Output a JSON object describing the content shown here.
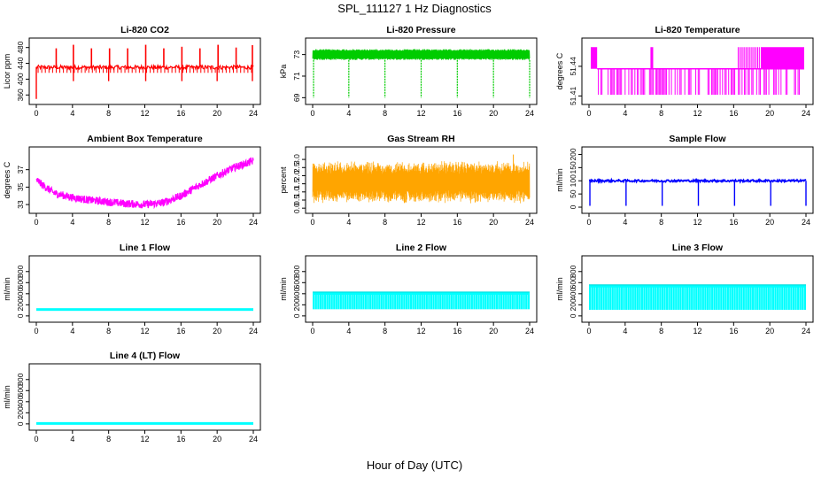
{
  "title": "SPL_111127  1 Hz Diagnostics",
  "xlabel": "Hour of Day (UTC)",
  "chart_data": [
    {
      "id": "co2",
      "type": "line",
      "title": "Li-820 CO2",
      "ylabel": "Licor ppm",
      "color": "#ff0000",
      "xlim": [
        0,
        24
      ],
      "ylim": [
        345,
        495
      ],
      "xticks": [
        0,
        4,
        8,
        12,
        16,
        20,
        24
      ],
      "yticks": [
        360,
        400,
        440,
        480
      ],
      "baseline": 430,
      "noise": 5,
      "spikes_x": [
        2.2,
        4.1,
        6.1,
        8.1,
        10.1,
        12.1,
        14.1,
        16.1,
        18.1,
        20.1,
        22.1,
        23.9
      ],
      "spikes_top": [
        478,
        487,
        478,
        478,
        478,
        487,
        478,
        482,
        478,
        487,
        480,
        486
      ],
      "dips_x": [
        4.1,
        8.0,
        12.1,
        16.1,
        20.0,
        23.9
      ],
      "dip_bottom": 395
    },
    {
      "id": "pressure",
      "type": "line",
      "title": "Li-820 Pressure",
      "ylabel": "kPa",
      "color": "#00cc00",
      "xlim": [
        0,
        24
      ],
      "ylim": [
        68.7,
        74.2
      ],
      "xticks": [
        0,
        4,
        8,
        12,
        16,
        20,
        24
      ],
      "yticks": [
        69,
        71,
        73
      ],
      "band_low": 72.5,
      "band_high": 73.5,
      "dips_x": [
        0.1,
        4.0,
        8.0,
        12.0,
        16.0,
        20.0,
        24.0
      ],
      "dip_bottom": 69
    },
    {
      "id": "licor_temp",
      "type": "line",
      "title": "Li-820 Temperature",
      "ylabel": "degrees C",
      "color": "#ff00ff",
      "xlim": [
        0,
        24
      ],
      "ylim": [
        51.405,
        51.465
      ],
      "xticks": [
        0,
        4,
        8,
        12,
        16,
        20,
        24
      ],
      "yticks": [
        51.41,
        51.44
      ],
      "levels": [
        51.4112,
        51.4375,
        51.4594
      ]
    },
    {
      "id": "box_temp",
      "type": "line",
      "title": "Ambient Box Temperature",
      "ylabel": "degrees C",
      "color": "#ff00ff",
      "xlim": [
        0,
        24
      ],
      "ylim": [
        32.4,
        39.2
      ],
      "xticks": [
        0,
        4,
        8,
        12,
        16,
        20,
        24
      ],
      "yticks": [
        33,
        35,
        37
      ],
      "x": [
        0,
        1,
        2,
        4,
        6,
        8,
        10,
        12,
        14,
        16,
        18,
        20,
        22,
        23.5,
        24
      ],
      "y": [
        35.8,
        35.0,
        34.3,
        33.8,
        33.5,
        33.3,
        33.1,
        33.0,
        33.2,
        34.0,
        35.2,
        36.3,
        37.3,
        37.8,
        38.0
      ],
      "spread": 0.45
    },
    {
      "id": "rh",
      "type": "line",
      "title": "Gas Stream RH",
      "ylabel": "percent",
      "color": "#ffa500",
      "xlim": [
        0,
        24
      ],
      "ylim": [
        -0.1,
        3.55
      ],
      "xticks": [
        0,
        4,
        8,
        12,
        16,
        20,
        24
      ],
      "yticks": [
        0.0,
        0.5,
        1.0,
        1.5,
        2.0,
        2.5,
        3.0
      ],
      "center": 1.6,
      "amplitude": 0.9,
      "peak": 3.3
    },
    {
      "id": "sample_flow",
      "type": "line",
      "title": "Sample Flow",
      "ylabel": "ml/min",
      "color": "#0000ff",
      "xlim": [
        0,
        24
      ],
      "ylim": [
        -10,
        215
      ],
      "xticks": [
        0,
        4,
        8,
        12,
        16,
        20,
        24
      ],
      "yticks": [
        0,
        50,
        100,
        150,
        200
      ],
      "level": 100,
      "noise": 4,
      "dips_x": [
        0.1,
        4.1,
        8.1,
        12.1,
        16.1,
        20.1,
        24.0
      ],
      "dip_bottom": 5
    },
    {
      "id": "line1",
      "type": "line",
      "title": "Line 1 Flow",
      "ylabel": "ml/min",
      "color": "#00ffff",
      "xlim": [
        0,
        24
      ],
      "ylim": [
        -50,
        1020
      ],
      "xticks": [
        0,
        4,
        8,
        12,
        16,
        20,
        24
      ],
      "yticks": [
        0,
        200,
        400,
        600,
        800
      ],
      "band_low": 80,
      "band_high": 115
    },
    {
      "id": "line2",
      "type": "line",
      "title": "Line 2 Flow",
      "ylabel": "ml/min",
      "color": "#00ffff",
      "xlim": [
        0,
        24
      ],
      "ylim": [
        -50,
        1020
      ],
      "xticks": [
        0,
        4,
        8,
        12,
        16,
        20,
        24
      ],
      "yticks": [
        0,
        200,
        400,
        600,
        800
      ],
      "band_low": 120,
      "band_high": 430
    },
    {
      "id": "line3",
      "type": "line",
      "title": "Line 3 Flow",
      "ylabel": "ml/min",
      "color": "#00ffff",
      "xlim": [
        0,
        24
      ],
      "ylim": [
        -50,
        1020
      ],
      "xticks": [
        0,
        4,
        8,
        12,
        16,
        20,
        24
      ],
      "yticks": [
        0,
        200,
        400,
        600,
        800
      ],
      "band_low": 110,
      "band_high": 560
    },
    {
      "id": "line4",
      "type": "line",
      "title": "Line 4 (LT) Flow",
      "ylabel": "ml/min",
      "color": "#00ffff",
      "xlim": [
        0,
        24
      ],
      "ylim": [
        -50,
        1020
      ],
      "xticks": [
        0,
        4,
        8,
        12,
        16,
        20,
        24
      ],
      "yticks": [
        0,
        200,
        400,
        600,
        800
      ],
      "band_low": 0,
      "band_high": 8
    }
  ]
}
